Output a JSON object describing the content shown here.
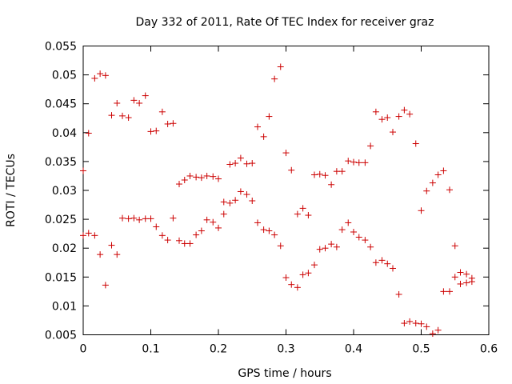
{
  "chart_data": {
    "type": "scatter",
    "title": "Day 332 of 2011, Rate Of TEC Index for receiver graz",
    "xlabel": "GPS time / hours",
    "ylabel": "ROTI / TECUs",
    "xlim": [
      0,
      0.6
    ],
    "ylim": [
      0.005,
      0.055
    ],
    "xticks": [
      "0",
      "0.1",
      "0.2",
      "0.3",
      "0.4",
      "0.5",
      "0.6"
    ],
    "yticks": [
      "0.005",
      "0.01",
      "0.015",
      "0.02",
      "0.025",
      "0.03",
      "0.035",
      "0.04",
      "0.045",
      "0.05",
      "0.055"
    ],
    "grid": false,
    "legend": "none",
    "marker": "+",
    "colors": {
      "points": "#cc0000",
      "axes": "#000000"
    },
    "series": [
      {
        "x": [
          0.0,
          0.008,
          0.017,
          0.025,
          0.033,
          0.042,
          0.05,
          0.058,
          0.067,
          0.075,
          0.083,
          0.092,
          0.1,
          0.108,
          0.117,
          0.125,
          0.133,
          0.142,
          0.15,
          0.158,
          0.167,
          0.175,
          0.183,
          0.192,
          0.2,
          0.208,
          0.217,
          0.225,
          0.233,
          0.242,
          0.25,
          0.258,
          0.267,
          0.275,
          0.283,
          0.292,
          0.3,
          0.308,
          0.317,
          0.325,
          0.333,
          0.342,
          0.35,
          0.358,
          0.367,
          0.375,
          0.383,
          0.392,
          0.4,
          0.408,
          0.417,
          0.425,
          0.433,
          0.442,
          0.45,
          0.458,
          0.467,
          0.475,
          0.483,
          0.492,
          0.5,
          0.508,
          0.517,
          0.525,
          0.533,
          0.542,
          0.55,
          0.558,
          0.567,
          0.575
        ],
        "y": [
          0.0334,
          0.0399,
          0.0494,
          0.0502,
          0.0499,
          0.043,
          0.0451,
          0.0429,
          0.0426,
          0.0456,
          0.0451,
          0.0464,
          0.0402,
          0.0403,
          0.0436,
          0.0415,
          0.0416,
          0.0311,
          0.0318,
          0.0325,
          0.0323,
          0.0322,
          0.0325,
          0.0324,
          0.032,
          0.028,
          0.0345,
          0.0347,
          0.0356,
          0.0346,
          0.0347,
          0.041,
          0.0393,
          0.0428,
          0.0493,
          0.0514,
          0.0365,
          0.0335,
          0.0259,
          0.0269,
          0.0257,
          0.0327,
          0.0328,
          0.0326,
          0.031,
          0.0333,
          0.0333,
          0.0351,
          0.0349,
          0.0348,
          0.0348,
          0.0377,
          0.0436,
          0.0423,
          0.0426,
          0.0401,
          0.0428,
          0.0439,
          0.0432,
          0.0381,
          0.0265,
          0.0299,
          0.0313,
          0.0327,
          0.0334,
          0.0301,
          0.0204,
          0.0158,
          0.0155,
          0.0148
        ]
      },
      {
        "x": [
          0.0,
          0.008,
          0.017,
          0.025,
          0.033,
          0.042,
          0.05,
          0.058,
          0.067,
          0.075,
          0.083,
          0.092,
          0.1,
          0.108,
          0.117,
          0.125,
          0.133,
          0.142,
          0.15,
          0.158,
          0.167,
          0.175,
          0.183,
          0.192,
          0.2,
          0.208,
          0.217,
          0.225,
          0.233,
          0.242,
          0.25,
          0.258,
          0.267,
          0.275,
          0.283,
          0.292,
          0.3,
          0.308,
          0.317,
          0.325,
          0.333,
          0.342,
          0.35,
          0.358,
          0.367,
          0.375,
          0.383,
          0.392,
          0.4,
          0.408,
          0.417,
          0.425,
          0.433,
          0.442,
          0.45,
          0.458,
          0.467,
          0.475,
          0.483,
          0.492,
          0.5,
          0.508,
          0.517,
          0.525,
          0.533,
          0.542,
          0.55,
          0.558,
          0.567,
          0.575
        ],
        "y": [
          0.0222,
          0.0226,
          0.0222,
          0.0189,
          0.0136,
          0.0205,
          0.0189,
          0.0252,
          0.0251,
          0.0252,
          0.0249,
          0.0251,
          0.0251,
          0.0237,
          0.0222,
          0.0214,
          0.0252,
          0.0213,
          0.0208,
          0.0208,
          0.0223,
          0.023,
          0.0249,
          0.0245,
          0.0235,
          0.0259,
          0.0278,
          0.0283,
          0.0298,
          0.0293,
          0.0282,
          0.0244,
          0.0232,
          0.023,
          0.0223,
          0.0204,
          0.0149,
          0.0137,
          0.0132,
          0.0154,
          0.0157,
          0.0171,
          0.0198,
          0.02,
          0.0207,
          0.0202,
          0.0232,
          0.0244,
          0.0228,
          0.0219,
          0.0214,
          0.0202,
          0.0175,
          0.0179,
          0.0173,
          0.0165,
          0.012,
          0.007,
          0.0073,
          0.007,
          0.0069,
          0.0064,
          0.0052,
          0.0058,
          0.0125,
          0.0125,
          0.015,
          0.0138,
          0.014,
          0.0142
        ]
      }
    ]
  }
}
